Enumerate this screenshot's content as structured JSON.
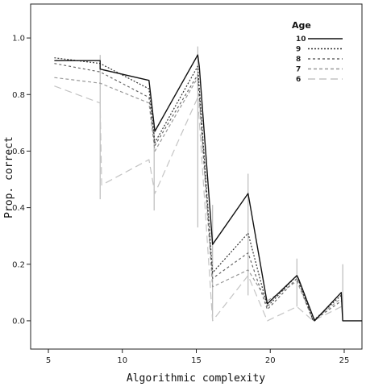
{
  "chart_data": {
    "type": "line",
    "xlabel": "Algorithmic complexity",
    "ylabel": "Prop. correct",
    "xlim": [
      3.8,
      26.2
    ],
    "ylim": [
      -0.1,
      1.12
    ],
    "xticks": [
      5,
      10,
      15,
      20,
      25
    ],
    "yticks": [
      0.0,
      0.2,
      0.4,
      0.6,
      0.8,
      1.0
    ],
    "ytick_labels": [
      "0.0",
      "0.2",
      "0.4",
      "0.6",
      "0.8",
      "1.0"
    ],
    "grid": false,
    "legend_title": "Age",
    "legend_position": "top-right",
    "series": [
      {
        "name": "10",
        "color": "#111111",
        "dash": "",
        "x": [
          5.4,
          8.5,
          8.5,
          11.8,
          12.2,
          15.1,
          15.2,
          16.1,
          18.5,
          18.6,
          19.8,
          21.8,
          21.9,
          23.0,
          24.8,
          24.9,
          26.2
        ],
        "y": [
          0.92,
          0.92,
          0.89,
          0.85,
          0.67,
          0.94,
          0.9,
          0.27,
          0.45,
          0.42,
          0.06,
          0.16,
          0.15,
          0.0,
          0.1,
          0.0,
          0.0
        ]
      },
      {
        "name": "9",
        "color": "#333333",
        "dash": "2,2",
        "x": [
          5.4,
          8.5,
          11.8,
          12.2,
          15.1,
          16.1,
          18.5,
          19.8,
          21.8,
          22.9,
          24.8
        ],
        "y": [
          0.93,
          0.91,
          0.82,
          0.63,
          0.9,
          0.17,
          0.31,
          0.05,
          0.16,
          0.0,
          0.09
        ]
      },
      {
        "name": "8",
        "color": "#666666",
        "dash": "3,3",
        "x": [
          5.4,
          8.5,
          11.8,
          12.2,
          15.1,
          16.1,
          18.5,
          19.8,
          21.8,
          22.9,
          24.8
        ],
        "y": [
          0.91,
          0.88,
          0.79,
          0.62,
          0.87,
          0.15,
          0.24,
          0.04,
          0.15,
          0.0,
          0.07
        ]
      },
      {
        "name": "7",
        "color": "#999999",
        "dash": "4,3",
        "x": [
          5.4,
          8.5,
          11.8,
          12.2,
          15.1,
          16.1,
          18.5,
          19.8,
          21.8,
          22.9,
          24.8
        ],
        "y": [
          0.86,
          0.84,
          0.77,
          0.6,
          0.86,
          0.12,
          0.18,
          0.07,
          0.14,
          0.0,
          0.08
        ]
      },
      {
        "name": "6",
        "color": "#c4c4c4",
        "dash": "9,5",
        "x": [
          5.4,
          8.5,
          8.6,
          11.8,
          12.2,
          15.1,
          16.1,
          18.5,
          19.8,
          21.8,
          22.9,
          24.8
        ],
        "y": [
          0.83,
          0.77,
          0.48,
          0.57,
          0.45,
          0.79,
          0.0,
          0.16,
          0.0,
          0.05,
          0.0,
          0.05
        ]
      }
    ],
    "error_bars": [
      {
        "x": 8.5,
        "low": 0.43,
        "high": 0.94
      },
      {
        "x": 12.15,
        "low": 0.39,
        "high": 0.7
      },
      {
        "x": 15.1,
        "low": 0.33,
        "high": 0.97
      },
      {
        "x": 16.1,
        "low": 0.0,
        "high": 0.41
      },
      {
        "x": 18.5,
        "low": 0.09,
        "high": 0.52
      },
      {
        "x": 21.8,
        "low": 0.05,
        "high": 0.22
      },
      {
        "x": 24.9,
        "low": 0.0,
        "high": 0.2
      }
    ]
  }
}
